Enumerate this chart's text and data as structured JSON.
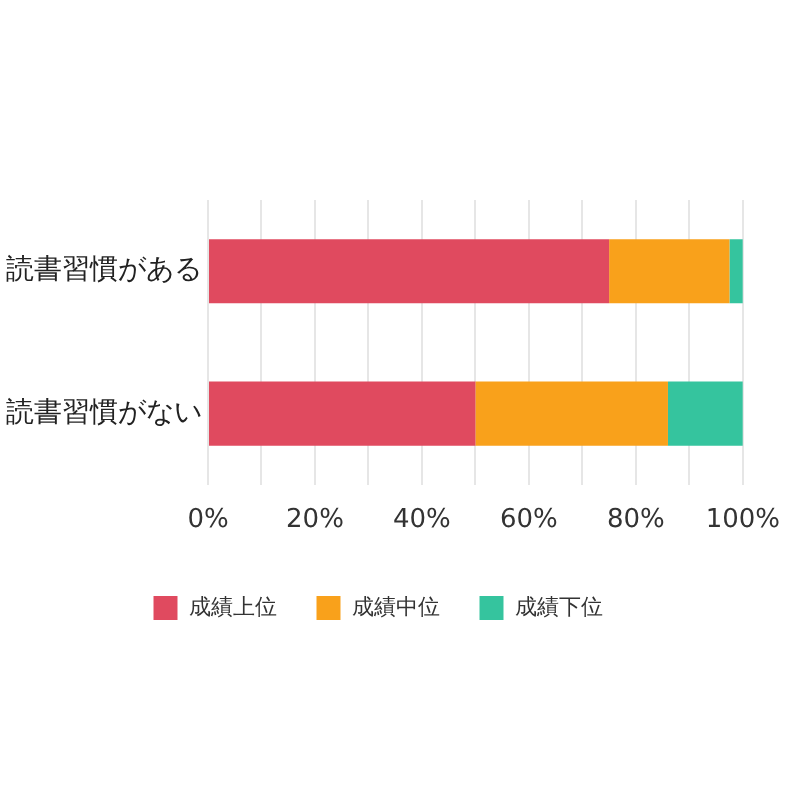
{
  "chart_data": {
    "type": "bar",
    "orientation": "horizontal",
    "stacked": true,
    "categories": [
      "読書習慣がある",
      "読書習慣がない"
    ],
    "series": [
      {
        "name": "成績上位",
        "color": "#e04a5f",
        "values": [
          75,
          50
        ]
      },
      {
        "name": "成績中位",
        "color": "#f9a11b",
        "values": [
          22.5,
          36
        ]
      },
      {
        "name": "成績下位",
        "color": "#35c49e",
        "values": [
          2.5,
          14
        ]
      }
    ],
    "xlim": [
      0,
      100
    ],
    "xticks": [
      {
        "value": 0,
        "label": "0%"
      },
      {
        "value": 10,
        "label": null
      },
      {
        "value": 20,
        "label": "20%"
      },
      {
        "value": 30,
        "label": null
      },
      {
        "value": 40,
        "label": "40%"
      },
      {
        "value": 50,
        "label": null
      },
      {
        "value": 60,
        "label": "60%"
      },
      {
        "value": 70,
        "label": null
      },
      {
        "value": 80,
        "label": "80%"
      },
      {
        "value": 90,
        "label": null
      },
      {
        "value": 100,
        "label": "100%"
      }
    ],
    "grid": "x",
    "legend": "bottom"
  }
}
